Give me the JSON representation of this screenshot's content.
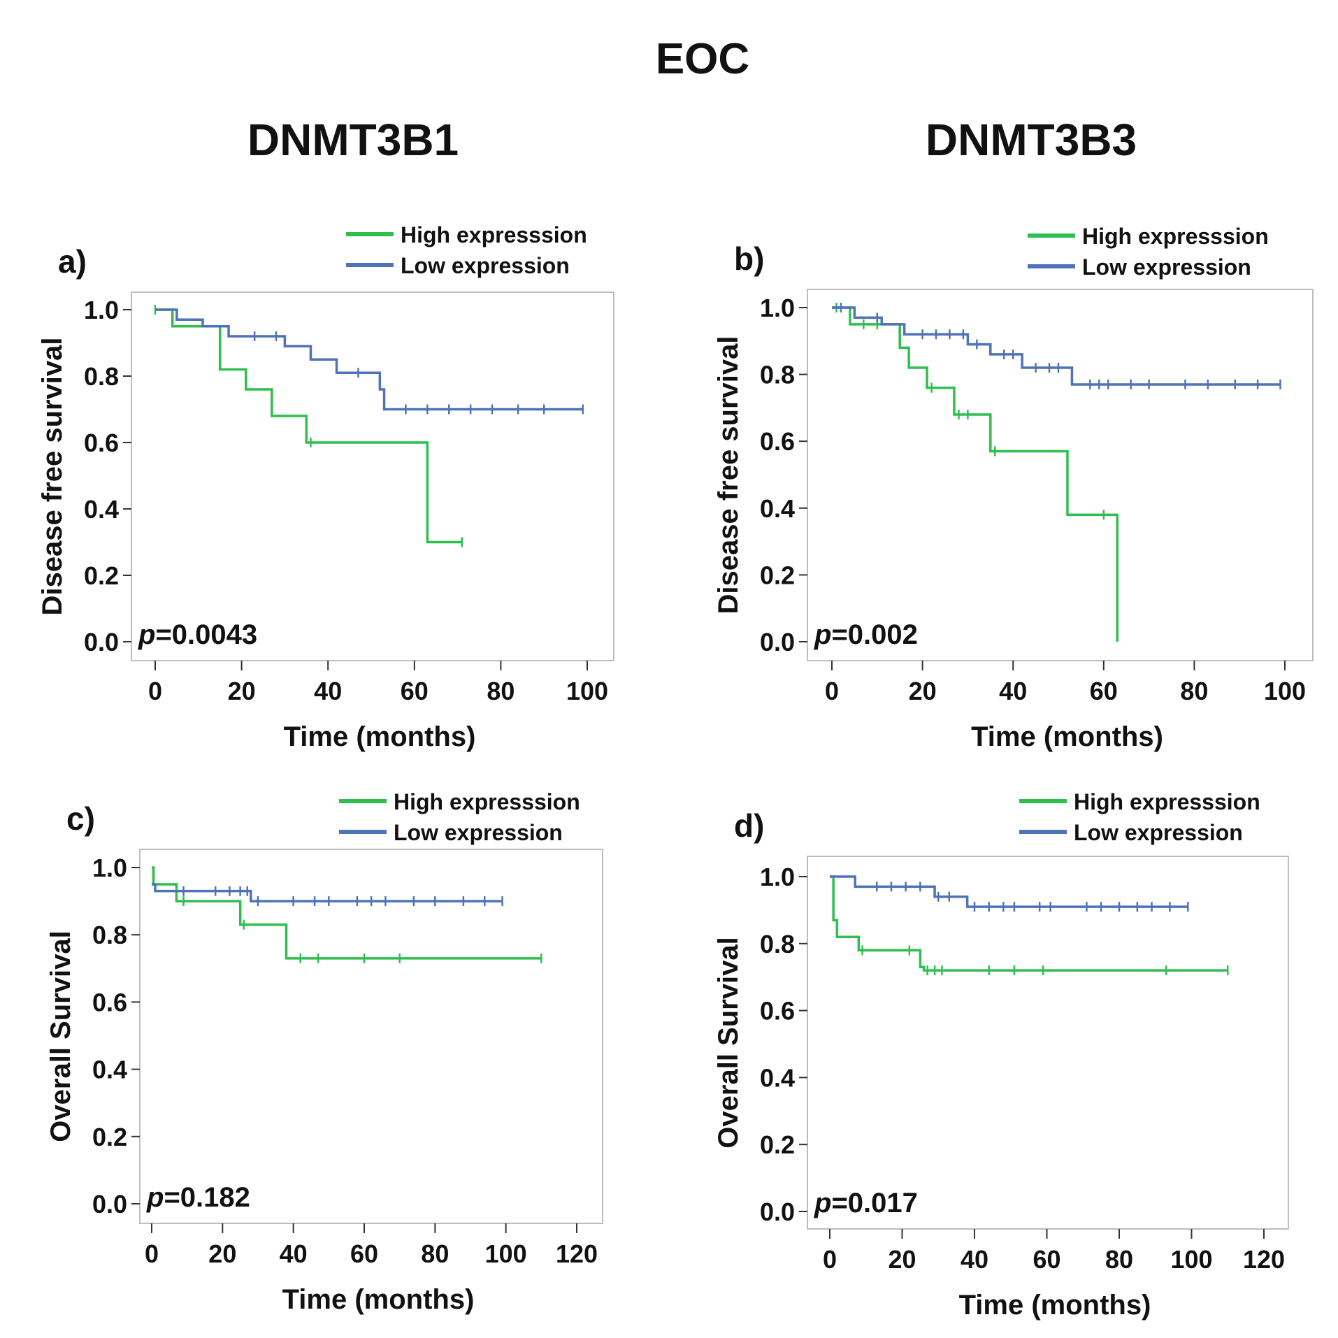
{
  "figure": {
    "title": "EOC",
    "column_titles": [
      "DNMT3B1",
      "DNMT3B3"
    ],
    "colors": {
      "high": "#2ebf4f",
      "low": "#4f73b8"
    }
  },
  "chart_data": [
    {
      "id": "a",
      "type": "line",
      "subtype": "kaplan-meier",
      "panel_label": "a)",
      "xlabel": "Time (months)",
      "ylabel": "Disease free survival",
      "xlim": [
        0,
        100
      ],
      "ylim": [
        0,
        1
      ],
      "xticks": [
        0,
        20,
        40,
        60,
        80,
        100
      ],
      "yticks": [
        0.0,
        0.2,
        0.4,
        0.6,
        0.8,
        1.0
      ],
      "ytick_labels": [
        "0.0",
        "0.2",
        "0.4",
        "0.6",
        "0.8",
        "1.0"
      ],
      "legend": [
        "High expresssion",
        "Low expression"
      ],
      "p_prefix": "p",
      "p_rest": "=0.0043",
      "series": [
        {
          "name": "High expresssion",
          "color": "#2ebf4f",
          "x": [
            0,
            4,
            15,
            21,
            27,
            35,
            63,
            71
          ],
          "y": [
            1.0,
            0.95,
            0.82,
            0.76,
            0.68,
            0.6,
            0.3,
            0.3
          ],
          "censored": [
            [
              0,
              1.0
            ],
            [
              36,
              0.6
            ],
            [
              71,
              0.3
            ]
          ]
        },
        {
          "name": "Low expression",
          "color": "#4f73b8",
          "x": [
            0,
            5,
            11,
            17,
            30,
            36,
            42,
            52,
            53,
            99
          ],
          "y": [
            1.0,
            0.97,
            0.95,
            0.92,
            0.89,
            0.85,
            0.81,
            0.76,
            0.7,
            0.7
          ],
          "censored": [
            [
              23,
              0.92
            ],
            [
              28,
              0.92
            ],
            [
              47,
              0.81
            ],
            [
              58,
              0.7
            ],
            [
              63,
              0.7
            ],
            [
              68,
              0.7
            ],
            [
              73,
              0.7
            ],
            [
              78,
              0.7
            ],
            [
              84,
              0.7
            ],
            [
              90,
              0.7
            ],
            [
              99,
              0.7
            ]
          ]
        }
      ]
    },
    {
      "id": "b",
      "type": "line",
      "subtype": "kaplan-meier",
      "panel_label": "b)",
      "xlabel": "Time (months)",
      "ylabel": "Disease free survival",
      "xlim": [
        0,
        100
      ],
      "ylim": [
        0,
        1
      ],
      "xticks": [
        0,
        20,
        40,
        60,
        80,
        100
      ],
      "yticks": [
        0.0,
        0.2,
        0.4,
        0.6,
        0.8,
        1.0
      ],
      "ytick_labels": [
        "0.0",
        "0.2",
        "0.4",
        "0.6",
        "0.8",
        "1.0"
      ],
      "legend": [
        "High expresssion",
        "Low expression"
      ],
      "p_prefix": "p",
      "p_rest": "=0.002",
      "series": [
        {
          "name": "High expresssion",
          "color": "#2ebf4f",
          "x": [
            0,
            4,
            15,
            17,
            21,
            27,
            35,
            52,
            63,
            63
          ],
          "y": [
            1.0,
            0.95,
            0.88,
            0.82,
            0.76,
            0.68,
            0.57,
            0.38,
            0.38,
            0.0
          ],
          "censored": [
            [
              1,
              1.0
            ],
            [
              7,
              0.95
            ],
            [
              10,
              0.95
            ],
            [
              22,
              0.76
            ],
            [
              28,
              0.68
            ],
            [
              30,
              0.68
            ],
            [
              36,
              0.57
            ],
            [
              60,
              0.38
            ]
          ]
        },
        {
          "name": "Low expression",
          "color": "#4f73b8",
          "x": [
            0,
            5,
            11,
            16,
            30,
            35,
            42,
            53,
            99
          ],
          "y": [
            1.0,
            0.97,
            0.95,
            0.92,
            0.89,
            0.86,
            0.82,
            0.77,
            0.77
          ],
          "censored": [
            [
              2,
              1.0
            ],
            [
              10,
              0.97
            ],
            [
              20,
              0.92
            ],
            [
              23,
              0.92
            ],
            [
              26,
              0.92
            ],
            [
              29,
              0.92
            ],
            [
              32,
              0.89
            ],
            [
              38,
              0.86
            ],
            [
              40,
              0.86
            ],
            [
              45,
              0.82
            ],
            [
              48,
              0.82
            ],
            [
              50,
              0.82
            ],
            [
              57,
              0.77
            ],
            [
              59,
              0.77
            ],
            [
              61,
              0.77
            ],
            [
              66,
              0.77
            ],
            [
              70,
              0.77
            ],
            [
              78,
              0.77
            ],
            [
              83,
              0.77
            ],
            [
              89,
              0.77
            ],
            [
              94,
              0.77
            ],
            [
              99,
              0.77
            ]
          ]
        }
      ]
    },
    {
      "id": "c",
      "type": "line",
      "subtype": "kaplan-meier",
      "panel_label": "c)",
      "xlabel": "Time (months)",
      "ylabel": "Overall Survival",
      "xlim": [
        0,
        120
      ],
      "ylim": [
        0,
        1
      ],
      "xticks": [
        0,
        20,
        40,
        60,
        80,
        100,
        120
      ],
      "yticks": [
        0.0,
        0.2,
        0.4,
        0.6,
        0.8,
        1.0
      ],
      "ytick_labels": [
        "0.0",
        "0.2",
        "0.4",
        "0.6",
        "0.8",
        "1.0"
      ],
      "legend": [
        "High expresssion",
        "Low expression"
      ],
      "p_prefix": "p",
      "p_rest": "=0.182",
      "series": [
        {
          "name": "High expresssion",
          "color": "#2ebf4f",
          "x": [
            0,
            0.5,
            7,
            25,
            38,
            110
          ],
          "y": [
            1.0,
            0.95,
            0.9,
            0.83,
            0.73,
            0.73
          ],
          "censored": [
            [
              9,
              0.9
            ],
            [
              26,
              0.83
            ],
            [
              42,
              0.73
            ],
            [
              47,
              0.73
            ],
            [
              60,
              0.73
            ],
            [
              70,
              0.73
            ],
            [
              110,
              0.73
            ]
          ]
        },
        {
          "name": "Low expression",
          "color": "#4f73b8",
          "x": [
            0,
            1,
            28,
            99
          ],
          "y": [
            0.95,
            0.93,
            0.9,
            0.9
          ],
          "censored": [
            [
              9,
              0.93
            ],
            [
              18,
              0.93
            ],
            [
              22,
              0.93
            ],
            [
              25,
              0.93
            ],
            [
              27,
              0.93
            ],
            [
              30,
              0.9
            ],
            [
              40,
              0.9
            ],
            [
              46,
              0.9
            ],
            [
              50,
              0.9
            ],
            [
              58,
              0.9
            ],
            [
              62,
              0.9
            ],
            [
              66,
              0.9
            ],
            [
              74,
              0.9
            ],
            [
              80,
              0.9
            ],
            [
              88,
              0.9
            ],
            [
              94,
              0.9
            ],
            [
              99,
              0.9
            ]
          ]
        }
      ]
    },
    {
      "id": "d",
      "type": "line",
      "subtype": "kaplan-meier",
      "panel_label": "d)",
      "xlabel": "Time (months)",
      "ylabel": "Overall Survival",
      "xlim": [
        0,
        120
      ],
      "ylim": [
        0,
        1
      ],
      "xticks": [
        0,
        20,
        40,
        60,
        80,
        100,
        120
      ],
      "yticks": [
        0.0,
        0.2,
        0.4,
        0.6,
        0.8,
        1.0
      ],
      "ytick_labels": [
        "0.0",
        "0.2",
        "0.4",
        "0.6",
        "0.8",
        "1.0"
      ],
      "legend": [
        "High expresssion",
        "Low expression"
      ],
      "p_prefix": "p",
      "p_rest": "=0.017",
      "series": [
        {
          "name": "High expresssion",
          "color": "#2ebf4f",
          "x": [
            0,
            1,
            2,
            8,
            25,
            26,
            110
          ],
          "y": [
            1.0,
            0.87,
            0.82,
            0.78,
            0.73,
            0.72,
            0.72
          ],
          "censored": [
            [
              9,
              0.78
            ],
            [
              22,
              0.78
            ],
            [
              27,
              0.72
            ],
            [
              29,
              0.72
            ],
            [
              31,
              0.72
            ],
            [
              44,
              0.72
            ],
            [
              51,
              0.72
            ],
            [
              59,
              0.72
            ],
            [
              93,
              0.72
            ],
            [
              110,
              0.72
            ]
          ]
        },
        {
          "name": "Low expression",
          "color": "#4f73b8",
          "x": [
            0,
            7,
            29,
            38,
            99
          ],
          "y": [
            1.0,
            0.97,
            0.94,
            0.91,
            0.91
          ],
          "censored": [
            [
              13,
              0.97
            ],
            [
              17,
              0.97
            ],
            [
              21,
              0.97
            ],
            [
              25,
              0.97
            ],
            [
              30,
              0.94
            ],
            [
              33,
              0.94
            ],
            [
              40,
              0.91
            ],
            [
              44,
              0.91
            ],
            [
              48,
              0.91
            ],
            [
              51,
              0.91
            ],
            [
              58,
              0.91
            ],
            [
              61,
              0.91
            ],
            [
              71,
              0.91
            ],
            [
              75,
              0.91
            ],
            [
              80,
              0.91
            ],
            [
              85,
              0.91
            ],
            [
              89,
              0.91
            ],
            [
              94,
              0.91
            ],
            [
              99,
              0.91
            ]
          ]
        }
      ]
    }
  ]
}
